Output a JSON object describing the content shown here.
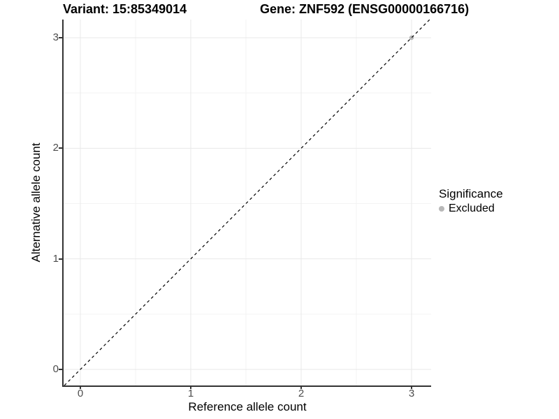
{
  "chart_data": {
    "type": "scatter",
    "title_left": "Variant: 15:85349014",
    "title_right": "Gene: ZNF592 (ENSG00000166716)",
    "xlabel": "Reference allele count",
    "ylabel": "Alternative allele count",
    "x_ticks": [
      "0",
      "1",
      "2",
      "3"
    ],
    "y_ticks": [
      "0",
      "1",
      "2",
      "3"
    ],
    "minor_ticks": [
      0.5,
      1.5,
      2.5
    ],
    "xlim": [
      -0.15,
      3.18
    ],
    "ylim": [
      -0.15,
      3.17
    ],
    "grid": "major and minor, light gray on white",
    "identity_line": {
      "style": "dashed",
      "slope": 1,
      "intercept": 0,
      "color": "#000000"
    },
    "series": [
      {
        "name": "Excluded",
        "color": "#b8b8b8",
        "points": [
          {
            "x": 3,
            "y": 3
          }
        ]
      }
    ],
    "legend": {
      "title": "Significance",
      "position": "right",
      "items": [
        {
          "label": "Excluded",
          "color": "#b8b8b8"
        }
      ]
    },
    "colors": {
      "point": "#b8b8b8",
      "grid_major": "#e8e8e8",
      "grid_minor": "#f3f3f3",
      "axis_line": "#333333",
      "dashed_line": "#000000",
      "tick_text": "#4d4d4d"
    }
  }
}
